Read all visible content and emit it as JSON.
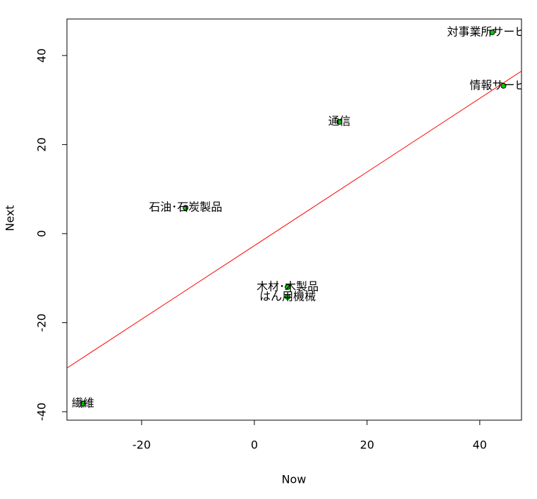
{
  "chart_data": {
    "type": "scatter",
    "x_label": "Now",
    "y_label": "Next",
    "x": [
      -30.4,
      -12.2,
      5.9,
      5.9,
      15.1,
      42.2,
      44.2
    ],
    "values": [
      -38.2,
      5.8,
      -12,
      -14.2,
      25.1,
      45.2,
      33.2
    ],
    "point_labels": [
      "繊維",
      "石油･石炭製品",
      "木材･木製品",
      "はん用機械",
      "通信",
      "対事業所サービス",
      "情報サービス"
    ],
    "color": "#00cc00",
    "xlim": [
      -33.25,
      47.4
    ],
    "ylim": [
      -41.9,
      48.2
    ],
    "xticks": [
      -20,
      0,
      20,
      40
    ],
    "yticks": [
      -40,
      -20,
      0,
      20,
      40
    ],
    "fit": {
      "intercept": -2.7,
      "slope": 0.827,
      "color": "#ff0000"
    }
  }
}
